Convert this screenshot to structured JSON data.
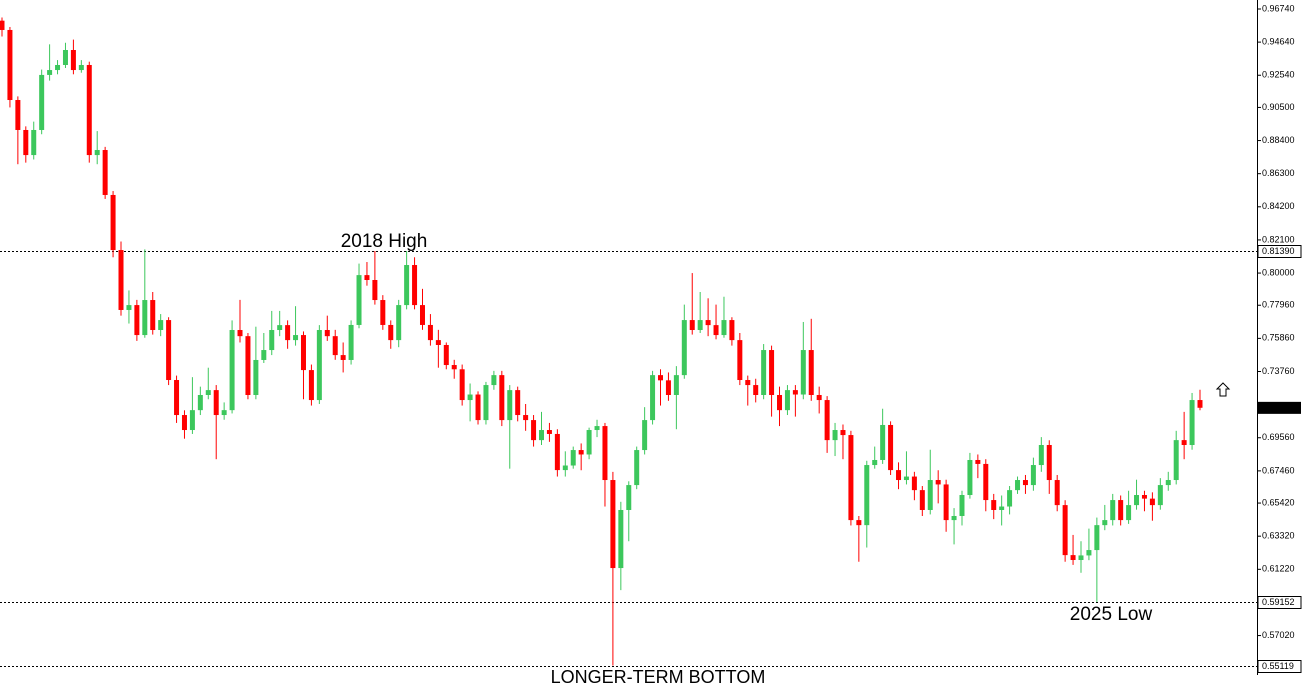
{
  "chart_data": {
    "type": "candlestick",
    "up_color": "#3cc75c",
    "down_color": "#ff0000",
    "ylim": [
      0.5452,
      0.9731
    ],
    "yticks": [
      {
        "value": 0.9674,
        "label": "0.96740"
      },
      {
        "value": 0.9464,
        "label": "0.94640"
      },
      {
        "value": 0.9254,
        "label": "0.92540"
      },
      {
        "value": 0.905,
        "label": "0.90500"
      },
      {
        "value": 0.884,
        "label": "0.88400"
      },
      {
        "value": 0.863,
        "label": "0.86300"
      },
      {
        "value": 0.842,
        "label": "0.84200"
      },
      {
        "value": 0.821,
        "label": "0.82100"
      },
      {
        "value": 0.8,
        "label": "0.80000"
      },
      {
        "value": 0.7796,
        "label": "0.77960"
      },
      {
        "value": 0.7586,
        "label": "0.75860"
      },
      {
        "value": 0.7376,
        "label": "0.73760"
      },
      {
        "value": 0.6956,
        "label": "0.69560"
      },
      {
        "value": 0.6746,
        "label": "0.67460"
      },
      {
        "value": 0.6542,
        "label": "0.65420"
      },
      {
        "value": 0.6332,
        "label": "0.63320"
      },
      {
        "value": 0.6122,
        "label": "0.61220"
      },
      {
        "value": 0.5702,
        "label": "0.57020"
      }
    ],
    "levels": [
      {
        "value": 0.8139,
        "label": "0.81390"
      },
      {
        "value": 0.59152,
        "label": "0.59152"
      },
      {
        "value": 0.55119,
        "label": "0.55119"
      }
    ],
    "current_price": {
      "value": 0.71455,
      "label": "0.71455"
    },
    "annotations": [
      "2018 High",
      "2025 Low",
      "LONGER-TERM BOTTOM"
    ],
    "open": [
      0.96,
      0.9541,
      0.9097,
      0.8907,
      0.8748,
      0.8907,
      0.9256,
      0.9287,
      0.9319,
      0.9414,
      0.9287,
      0.9319,
      0.8748,
      0.878,
      0.8495,
      0.8146,
      0.7766,
      0.7797,
      0.7607,
      0.7829,
      0.7639,
      0.7702,
      0.7322,
      0.71,
      0.7005,
      0.7131,
      0.7227,
      0.7258,
      0.71,
      0.7131,
      0.7639,
      0.76,
      0.7227,
      0.7449,
      0.7512,
      0.7639,
      0.767,
      0.7575,
      0.7607,
      0.7385,
      0.7195,
      0.7639,
      0.76,
      0.748,
      0.7449,
      0.7671,
      0.7987,
      0.7956,
      0.7829,
      0.7671,
      0.7575,
      0.7797,
      0.8051,
      0.7797,
      0.7671,
      0.7575,
      0.7544,
      0.7417,
      0.739,
      0.7195,
      0.723,
      0.7068,
      0.729,
      0.7353,
      0.7068,
      0.7258,
      0.71,
      0.7068,
      0.6941,
      0.7005,
      0.698,
      0.6751,
      0.678,
      0.6878,
      0.685,
      0.7005,
      0.703,
      0.6688,
      0.613,
      0.6498,
      0.6656,
      0.6878,
      0.7068,
      0.7353,
      0.732,
      0.7227,
      0.7353,
      0.7702,
      0.7639,
      0.7702,
      0.767,
      0.7607,
      0.7702,
      0.7575,
      0.7322,
      0.729,
      0.7227,
      0.7512,
      0.7227,
      0.7131,
      0.7258,
      0.723,
      0.7512,
      0.7227,
      0.7195,
      0.6941,
      0.7005,
      0.6973,
      0.6434,
      0.6402,
      0.6783,
      0.6815,
      0.7037,
      0.6751,
      0.6688,
      0.671,
      0.6624,
      0.6498,
      0.6688,
      0.666,
      0.6434,
      0.646,
      0.6593,
      0.6815,
      0.679,
      0.6561,
      0.6498,
      0.652,
      0.6624,
      0.6688,
      0.6656,
      0.6783,
      0.691,
      0.6688,
      0.6529,
      0.6212,
      0.6181,
      0.621,
      0.6244,
      0.6402,
      0.6434,
      0.6561,
      0.6434,
      0.6529,
      0.6593,
      0.657,
      0.6529,
      0.6656,
      0.6688,
      0.6941,
      0.691,
      0.7195
    ],
    "high": [
      0.962,
      0.956,
      0.912,
      0.893,
      0.896,
      0.929,
      0.945,
      0.935,
      0.946,
      0.948,
      0.935,
      0.934,
      0.89,
      0.88,
      0.852,
      0.82,
      0.789,
      0.783,
      0.815,
      0.788,
      0.774,
      0.772,
      0.735,
      0.713,
      0.734,
      0.728,
      0.74,
      0.729,
      0.718,
      0.77,
      0.783,
      0.762,
      0.766,
      0.762,
      0.776,
      0.776,
      0.77,
      0.779,
      0.763,
      0.742,
      0.767,
      0.773,
      0.764,
      0.756,
      0.77,
      0.806,
      0.807,
      0.814,
      0.786,
      0.77,
      0.783,
      0.814,
      0.81,
      0.79,
      0.774,
      0.764,
      0.756,
      0.745,
      0.742,
      0.73,
      0.725,
      0.731,
      0.738,
      0.738,
      0.729,
      0.728,
      0.717,
      0.71,
      0.712,
      0.705,
      0.701,
      0.687,
      0.69,
      0.692,
      0.702,
      0.707,
      0.705,
      0.674,
      0.655,
      0.668,
      0.69,
      0.715,
      0.738,
      0.739,
      0.737,
      0.741,
      0.78,
      0.8,
      0.788,
      0.784,
      0.78,
      0.785,
      0.772,
      0.762,
      0.735,
      0.733,
      0.755,
      0.754,
      0.728,
      0.729,
      0.729,
      0.769,
      0.771,
      0.728,
      0.722,
      0.705,
      0.704,
      0.7,
      0.646,
      0.681,
      0.69,
      0.714,
      0.706,
      0.68,
      0.687,
      0.674,
      0.665,
      0.688,
      0.675,
      0.669,
      0.651,
      0.662,
      0.686,
      0.685,
      0.682,
      0.66,
      0.659,
      0.665,
      0.671,
      0.672,
      0.683,
      0.696,
      0.694,
      0.672,
      0.656,
      0.634,
      0.63,
      0.638,
      0.645,
      0.653,
      0.66,
      0.659,
      0.662,
      0.669,
      0.662,
      0.661,
      0.67,
      0.674,
      0.7,
      0.712,
      0.724,
      0.726
    ],
    "low": [
      0.95,
      0.905,
      0.869,
      0.87,
      0.872,
      0.888,
      0.922,
      0.926,
      0.93,
      0.926,
      0.927,
      0.87,
      0.869,
      0.847,
      0.81,
      0.773,
      0.768,
      0.757,
      0.759,
      0.761,
      0.76,
      0.729,
      0.705,
      0.695,
      0.698,
      0.71,
      0.72,
      0.682,
      0.707,
      0.711,
      0.756,
      0.72,
      0.72,
      0.743,
      0.748,
      0.76,
      0.752,
      0.754,
      0.72,
      0.716,
      0.717,
      0.757,
      0.745,
      0.737,
      0.742,
      0.765,
      0.792,
      0.78,
      0.764,
      0.752,
      0.753,
      0.777,
      0.777,
      0.764,
      0.754,
      0.74,
      0.739,
      0.733,
      0.716,
      0.706,
      0.704,
      0.704,
      0.726,
      0.703,
      0.676,
      0.706,
      0.7,
      0.69,
      0.691,
      0.693,
      0.671,
      0.671,
      0.676,
      0.675,
      0.682,
      0.696,
      0.652,
      0.5512,
      0.599,
      0.63,
      0.663,
      0.685,
      0.704,
      0.716,
      0.719,
      0.701,
      0.733,
      0.761,
      0.762,
      0.76,
      0.758,
      0.759,
      0.754,
      0.729,
      0.716,
      0.718,
      0.72,
      0.709,
      0.703,
      0.71,
      0.709,
      0.72,
      0.719,
      0.711,
      0.686,
      0.684,
      0.682,
      0.64,
      0.617,
      0.626,
      0.676,
      0.679,
      0.672,
      0.663,
      0.666,
      0.656,
      0.646,
      0.647,
      0.654,
      0.636,
      0.628,
      0.64,
      0.657,
      0.67,
      0.649,
      0.644,
      0.64,
      0.647,
      0.66,
      0.66,
      0.662,
      0.674,
      0.66,
      0.649,
      0.617,
      0.615,
      0.61,
      0.618,
      0.5915,
      0.637,
      0.64,
      0.64,
      0.641,
      0.65,
      0.649,
      0.643,
      0.65,
      0.662,
      0.666,
      0.682,
      0.688,
      0.713
    ],
    "close": [
      0.9541,
      0.9097,
      0.8907,
      0.8748,
      0.8907,
      0.9256,
      0.9287,
      0.9319,
      0.9414,
      0.9287,
      0.9319,
      0.8748,
      0.878,
      0.8495,
      0.8146,
      0.7766,
      0.7797,
      0.7607,
      0.7829,
      0.7639,
      0.7702,
      0.7322,
      0.71,
      0.7005,
      0.7131,
      0.7227,
      0.7258,
      0.71,
      0.7131,
      0.7639,
      0.76,
      0.7227,
      0.7449,
      0.7512,
      0.7639,
      0.767,
      0.7575,
      0.7607,
      0.7385,
      0.7195,
      0.7639,
      0.76,
      0.748,
      0.7449,
      0.7671,
      0.7987,
      0.7956,
      0.7829,
      0.7671,
      0.7575,
      0.7797,
      0.8051,
      0.7797,
      0.7671,
      0.7575,
      0.7544,
      0.7417,
      0.739,
      0.7195,
      0.723,
      0.7068,
      0.729,
      0.7353,
      0.7068,
      0.7258,
      0.71,
      0.7068,
      0.6941,
      0.7005,
      0.698,
      0.6751,
      0.678,
      0.6878,
      0.685,
      0.7005,
      0.703,
      0.6688,
      0.613,
      0.6498,
      0.6656,
      0.6878,
      0.7068,
      0.7353,
      0.732,
      0.7227,
      0.7353,
      0.7702,
      0.7639,
      0.7702,
      0.767,
      0.7607,
      0.7702,
      0.7575,
      0.7322,
      0.729,
      0.7227,
      0.7512,
      0.7227,
      0.7131,
      0.7258,
      0.723,
      0.7512,
      0.7227,
      0.7195,
      0.6941,
      0.7005,
      0.6973,
      0.6434,
      0.6402,
      0.6783,
      0.6815,
      0.7037,
      0.6751,
      0.6688,
      0.671,
      0.6624,
      0.6498,
      0.6688,
      0.666,
      0.6434,
      0.646,
      0.6593,
      0.6815,
      0.679,
      0.6561,
      0.6498,
      0.652,
      0.6624,
      0.6688,
      0.6656,
      0.6783,
      0.691,
      0.6688,
      0.6529,
      0.6212,
      0.6181,
      0.621,
      0.6244,
      0.6402,
      0.6434,
      0.6561,
      0.6434,
      0.6529,
      0.6593,
      0.657,
      0.6529,
      0.6656,
      0.6688,
      0.6941,
      0.691,
      0.7195,
      0.7146
    ]
  }
}
